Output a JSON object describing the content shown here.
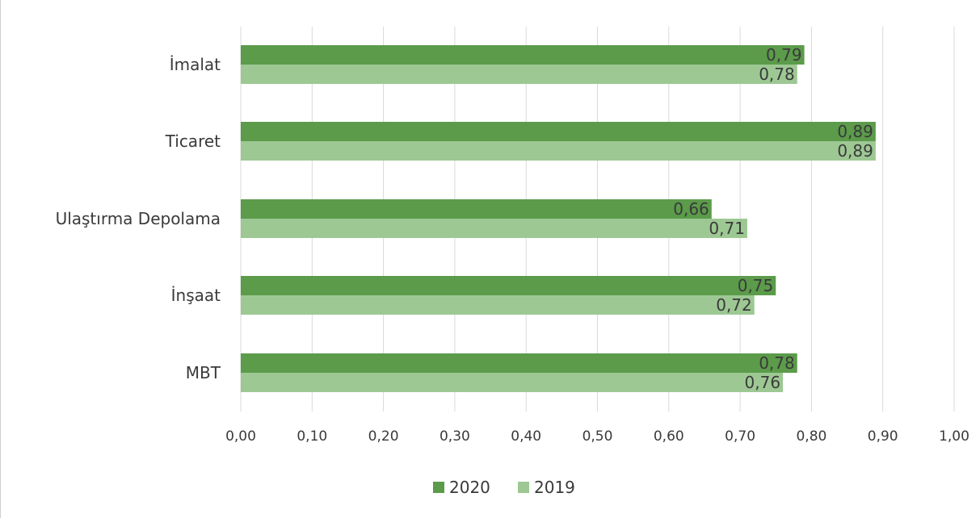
{
  "chart_data": {
    "type": "bar",
    "orientation": "horizontal",
    "categories": [
      "İmalat",
      "Ticaret",
      "Ulaştırma Depolama",
      "İnşaat",
      "MBT"
    ],
    "series": [
      {
        "name": "2020",
        "values": [
          0.79,
          0.89,
          0.66,
          0.75,
          0.78
        ],
        "value_labels": [
          "0,79",
          "0,89",
          "0,66",
          "0,75",
          "0,78"
        ],
        "color": "#5b9b4a"
      },
      {
        "name": "2019",
        "values": [
          0.78,
          0.89,
          0.71,
          0.72,
          0.76
        ],
        "value_labels": [
          "0,78",
          "0,89",
          "0,71",
          "0,72",
          "0,76"
        ],
        "color": "#9dc893"
      }
    ],
    "xlim": [
      0,
      1.0
    ],
    "x_ticks": [
      "0,00",
      "0,10",
      "0,20",
      "0,30",
      "0,40",
      "0,50",
      "0,60",
      "0,70",
      "0,80",
      "0,90",
      "1,00"
    ],
    "grid": true,
    "legend_position": "bottom",
    "title": "",
    "xlabel": "",
    "ylabel": ""
  }
}
